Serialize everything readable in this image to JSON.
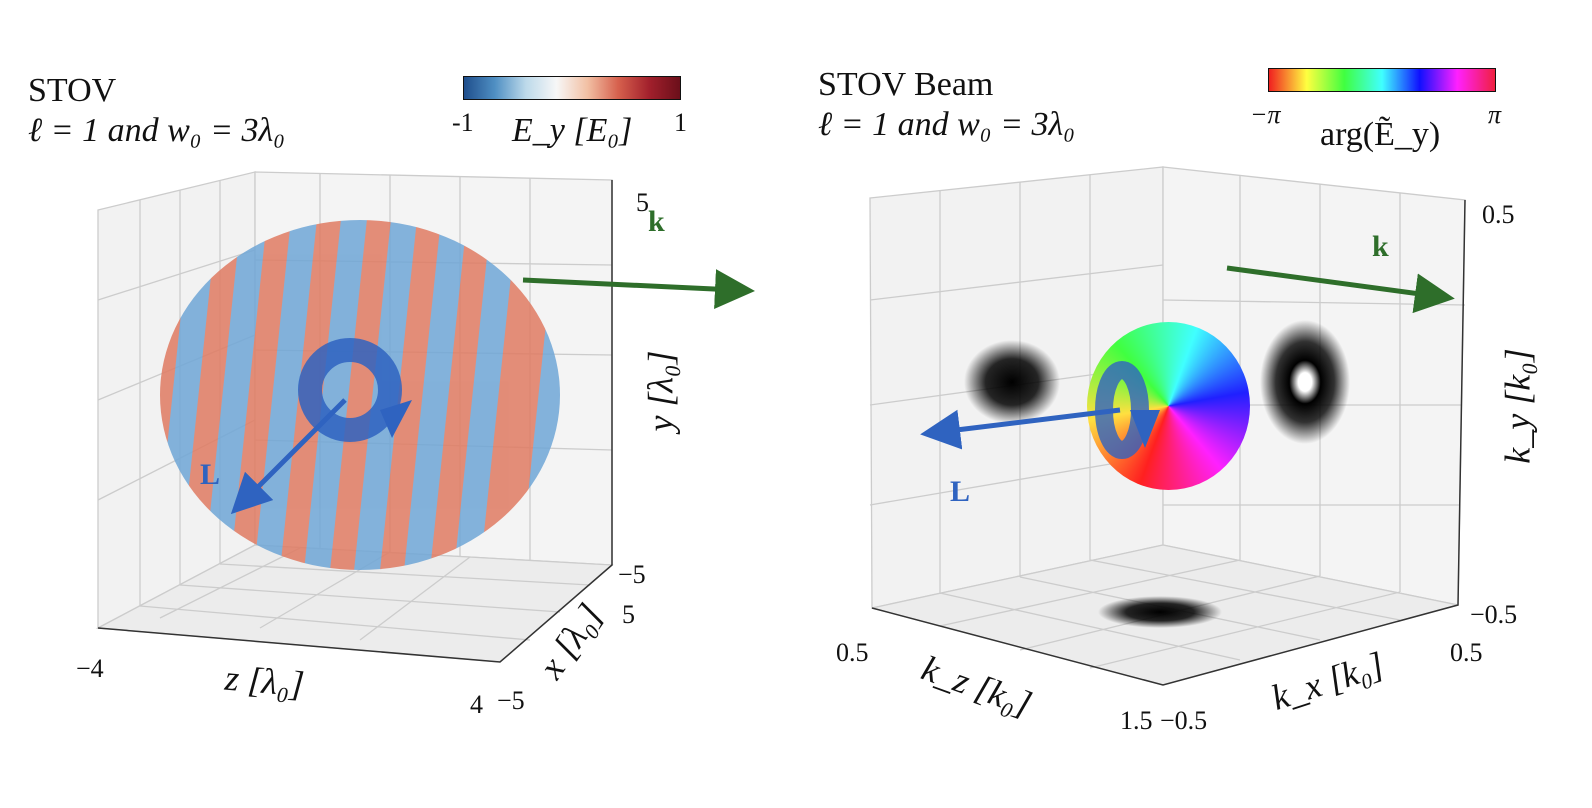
{
  "chart_data": [
    {
      "type": "scatter",
      "title": "STOV",
      "subtitle": "ℓ = 1 and w₀ = 3λ₀",
      "colorbar": {
        "label": "E_y [E₀]",
        "min_label": "-1",
        "max_label": "1",
        "colormap": "RdBu_r",
        "colors": [
          "#1f4e8c",
          "#f7f7f7",
          "#6b0f1a"
        ]
      },
      "axes": {
        "z": {
          "label": "z [λ₀]",
          "ticks": [
            "−4",
            "4"
          ]
        },
        "x": {
          "label": "x [λ₀]",
          "ticks": [
            "−5",
            "5"
          ]
        },
        "y": {
          "label": "y [λ₀]",
          "ticks": [
            "5",
            "−5"
          ]
        }
      },
      "annotations": {
        "k": "k",
        "L": "L"
      },
      "colors": {
        "blue": "#6fa6d6",
        "red": "#e07b62",
        "k_arrow": "#2e6e2a",
        "L_arrow": "#2f63c0"
      }
    },
    {
      "type": "scatter",
      "title": "STOV Beam",
      "subtitle": "ℓ = 1 and w₀ = 3λ₀",
      "colorbar": {
        "label": "arg(Ẽ_y)",
        "min_label": "−π",
        "max_label": "π",
        "colormap": "hsv"
      },
      "axes": {
        "kz": {
          "label": "k_z [k₀]",
          "ticks": [
            "0.5",
            "1.5"
          ]
        },
        "kx": {
          "label": "k_x [k₀]",
          "ticks": [
            "−0.5",
            "0.5"
          ]
        },
        "ky": {
          "label": "k_y [k₀]",
          "ticks": [
            "0.5",
            "−0.5"
          ]
        }
      },
      "annotations": {
        "k": "k",
        "L": "L"
      },
      "colors": {
        "k_arrow": "#2e6e2a",
        "L_arrow": "#2f63c0"
      }
    }
  ]
}
